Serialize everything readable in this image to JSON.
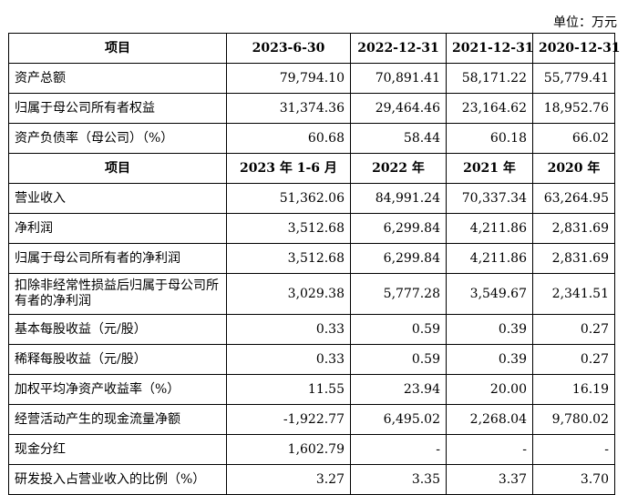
{
  "unit_label": "单位：万元",
  "section1": {
    "headers": [
      "项目",
      "2023-6-30",
      "2022-12-31",
      "2021-12-31",
      "2020-12-31"
    ],
    "rows": [
      [
        "资产总额",
        "79,794.10",
        "70,891.41",
        "58,171.22",
        "55,779.41"
      ],
      [
        "归属于母公司所有者权益",
        "31,374.36",
        "29,464.46",
        "23,164.62",
        "18,952.76"
      ],
      [
        "资产负债率（母公司）（%）",
        "60.68",
        "58.44",
        "60.18",
        "66.02"
      ]
    ]
  },
  "section2": {
    "headers": [
      "项目",
      "2023 年 1-6 月",
      "2022 年",
      "2021 年",
      "2020 年"
    ],
    "rows": [
      [
        "营业收入",
        "51,362.06",
        "84,991.24",
        "70,337.34",
        "63,264.95"
      ],
      [
        "净利润",
        "3,512.68",
        "6,299.84",
        "4,211.86",
        "2,831.69"
      ],
      [
        "归属于母公司所有者的净利润",
        "3,512.68",
        "6,299.84",
        "4,211.86",
        "2,831.69"
      ],
      [
        "扣除非经常性损益后归属于母公司所有者的净利润",
        "3,029.38",
        "5,777.28",
        "3,549.67",
        "2,341.51"
      ],
      [
        "基本每股收益（元/股）",
        "0.33",
        "0.59",
        "0.39",
        "0.27"
      ],
      [
        "稀释每股收益（元/股）",
        "0.33",
        "0.59",
        "0.39",
        "0.27"
      ],
      [
        "加权平均净资产收益率（%）",
        "11.55",
        "23.94",
        "20.00",
        "16.19"
      ],
      [
        "经营活动产生的现金流量净额",
        "-1,922.77",
        "6,495.02",
        "2,268.04",
        "9,780.02"
      ],
      [
        "现金分红",
        "1,602.79",
        "-",
        "-",
        "-"
      ],
      [
        "研发投入占营业收入的比例（%）",
        "3.27",
        "3.35",
        "3.37",
        "3.70"
      ]
    ]
  }
}
